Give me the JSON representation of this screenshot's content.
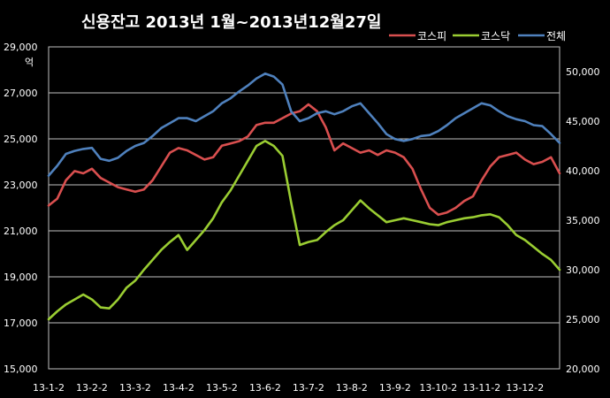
{
  "chart_data": {
    "type": "line",
    "title": "신용잔고  2013년 1월~2013년12월27일",
    "ylabel": "억",
    "y2label": "",
    "x_ticks": [
      "13-1-2",
      "13-2-2",
      "13-3-2",
      "13-4-2",
      "13-5-2",
      "13-6-2",
      "13-7-2",
      "13-8-2",
      "13-9-2",
      "13-10-2",
      "13-11-2",
      "13-12-2"
    ],
    "y_ticks": [
      "15,000",
      "17,000",
      "19,000",
      "21,000",
      "23,000",
      "25,000",
      "27,000",
      "29,000"
    ],
    "y2_ticks": [
      "20,000",
      "25,000",
      "30,000",
      "35,000",
      "40,000",
      "45,000",
      "50,000"
    ],
    "ylim": [
      15000,
      29000
    ],
    "y2lim": [
      20000,
      52500
    ],
    "grid": true,
    "legend_position": "top-right",
    "x": [
      0,
      0.2,
      0.4,
      0.6,
      0.8,
      1,
      1.2,
      1.4,
      1.6,
      1.8,
      2,
      2.2,
      2.4,
      2.6,
      2.8,
      3,
      3.2,
      3.4,
      3.6,
      3.8,
      4,
      4.2,
      4.4,
      4.6,
      4.8,
      5,
      5.2,
      5.4,
      5.6,
      5.8,
      6,
      6.2,
      6.4,
      6.6,
      6.8,
      7,
      7.2,
      7.4,
      7.6,
      7.8,
      8,
      8.2,
      8.4,
      8.6,
      8.8,
      9,
      9.2,
      9.4,
      9.6,
      9.8,
      10,
      10.2,
      10.4,
      10.6,
      10.8,
      11,
      11.2,
      11.4,
      11.6,
      11.8
    ],
    "series": [
      {
        "name": "코스피",
        "color": "#d94f4f",
        "axis": "left",
        "values": [
          22100,
          22400,
          23200,
          23600,
          23500,
          23700,
          23300,
          23100,
          22900,
          22800,
          22700,
          22800,
          23200,
          23800,
          24400,
          24600,
          24500,
          24300,
          24100,
          24200,
          24700,
          24800,
          24900,
          25100,
          25600,
          25700,
          25700,
          25900,
          26100,
          26200,
          26500,
          26200,
          25500,
          24500,
          24800,
          24600,
          24400,
          24500,
          24300,
          24500,
          24400,
          24200,
          23700,
          22800,
          22000,
          21700,
          21800,
          22000,
          22300,
          22500,
          23200,
          23800,
          24200,
          24300,
          24400,
          24100,
          23900,
          24000,
          24200,
          23500
        ]
      },
      {
        "name": "코스닥",
        "color": "#9acd32",
        "axis": "right",
        "values": [
          25000,
          25800,
          26500,
          27000,
          27500,
          27000,
          26200,
          26100,
          27000,
          28200,
          28900,
          30000,
          31000,
          32000,
          32800,
          33500,
          32000,
          33000,
          34000,
          35200,
          36800,
          38000,
          39500,
          41000,
          42500,
          43000,
          42500,
          41500,
          36800,
          32500,
          32800,
          33000,
          33800,
          34500,
          35000,
          36000,
          37000,
          36200,
          35500,
          34800,
          35000,
          35200,
          35000,
          34800,
          34600,
          34500,
          34800,
          35000,
          35200,
          35300,
          35500,
          35600,
          35300,
          34500,
          33500,
          33000,
          32300,
          31600,
          31000,
          30000
        ]
      },
      {
        "name": "전체",
        "color": "#4f81bd",
        "axis": "right",
        "values": [
          39500,
          40500,
          41700,
          42000,
          42200,
          42300,
          41200,
          41000,
          41300,
          42000,
          42500,
          42800,
          43500,
          44300,
          44800,
          45300,
          45300,
          45000,
          45500,
          46000,
          46800,
          47300,
          48000,
          48600,
          49300,
          49800,
          49500,
          48700,
          46000,
          45000,
          45300,
          45800,
          46000,
          45700,
          46000,
          46500,
          46800,
          45800,
          44800,
          43700,
          43200,
          43000,
          43200,
          43500,
          43600,
          44000,
          44600,
          45300,
          45800,
          46300,
          46800,
          46600,
          46000,
          45500,
          45200,
          45000,
          44600,
          44500,
          43700,
          42800
        ]
      }
    ]
  }
}
